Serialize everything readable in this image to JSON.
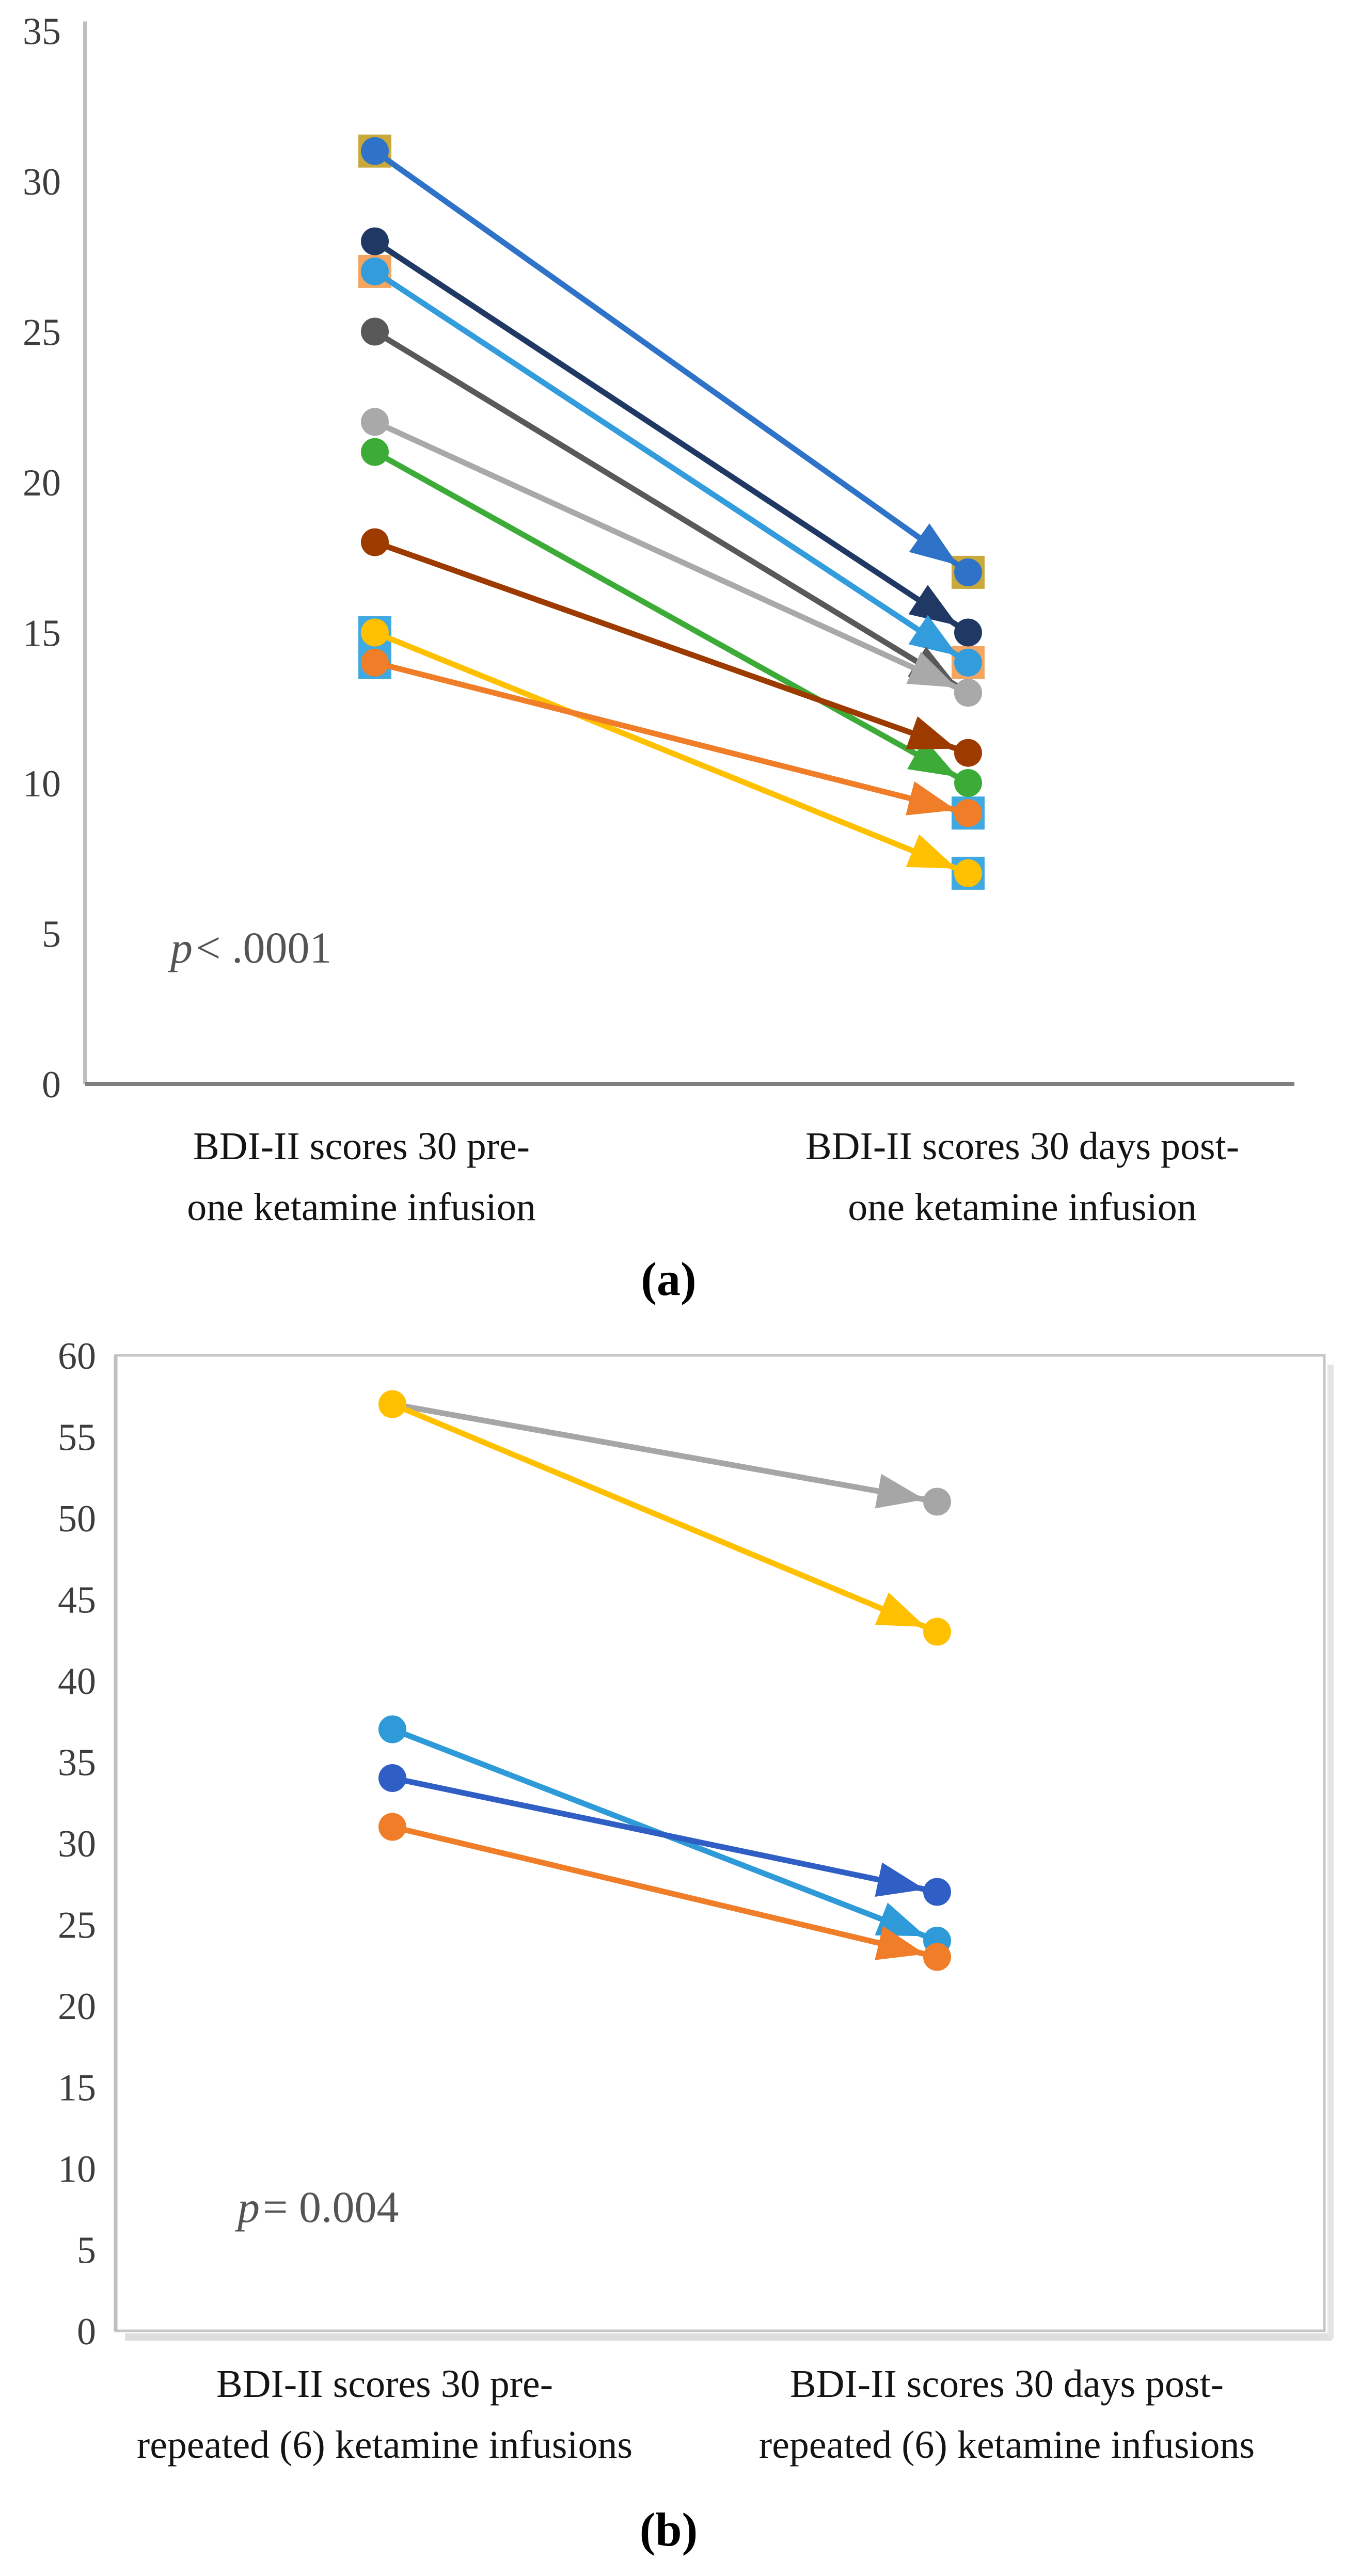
{
  "chart_data": [
    {
      "type": "line",
      "subtype": "slopegraph-pre-post-arrows",
      "panel_label": "(a)",
      "title": "",
      "xlabel": "",
      "ylabel": "",
      "ylim": [
        0,
        35
      ],
      "ytick_step": 5,
      "grid": false,
      "legend": false,
      "categories": [
        "BDI-II scores 30 pre- one ketamine infusion",
        "BDI-II scores 30 days post- one ketamine infusion"
      ],
      "x_tick_labels": [
        {
          "line1": "BDI-II scores 30 pre-",
          "line2": "one ketamine infusion"
        },
        {
          "line1": "BDI-II scores 30 days post-",
          "line2": "one ketamine infusion"
        }
      ],
      "annotation": {
        "symbol": "p",
        "rel_text": "< .0001"
      },
      "series": [
        {
          "name": "patient gold (hidden square, behind blue)",
          "color": "#C9A93B",
          "marker": "square",
          "line": false,
          "values": [
            31,
            17
          ]
        },
        {
          "name": "patient peach (hidden square, behind light blue)",
          "color": "#F2A661",
          "marker": "square",
          "line": false,
          "values": [
            27,
            14
          ]
        },
        {
          "name": "patient sky-blue square A (behind yellow)",
          "color": "#41A9E1",
          "marker": "square",
          "line": false,
          "values": [
            15,
            7
          ]
        },
        {
          "name": "patient sky-blue square B (behind orange)",
          "color": "#41A9E1",
          "marker": "square",
          "line": false,
          "values": [
            14,
            9
          ]
        },
        {
          "name": "patient blue",
          "color": "#2E73C8",
          "marker": "circle",
          "line": true,
          "values": [
            31,
            17
          ]
        },
        {
          "name": "patient dark navy",
          "color": "#1F3864",
          "marker": "circle",
          "line": true,
          "values": [
            28,
            15
          ]
        },
        {
          "name": "patient light blue",
          "color": "#339CDC",
          "marker": "circle",
          "line": true,
          "values": [
            27,
            14
          ]
        },
        {
          "name": "patient dark gray",
          "color": "#595959",
          "marker": "circle",
          "line": true,
          "values": [
            25,
            13
          ]
        },
        {
          "name": "patient silver",
          "color": "#A9A9A9",
          "marker": "circle",
          "line": true,
          "values": [
            22,
            13
          ]
        },
        {
          "name": "patient green",
          "color": "#3CAB37",
          "marker": "circle",
          "line": true,
          "values": [
            21,
            10
          ]
        },
        {
          "name": "patient dark red",
          "color": "#9C3A00",
          "marker": "circle",
          "line": true,
          "values": [
            18,
            11
          ]
        },
        {
          "name": "patient yellow",
          "color": "#FFC000",
          "marker": "circle",
          "line": true,
          "values": [
            15,
            7
          ]
        },
        {
          "name": "patient orange",
          "color": "#F07D28",
          "marker": "circle",
          "line": true,
          "values": [
            14,
            9
          ]
        }
      ]
    },
    {
      "type": "line",
      "subtype": "slopegraph-pre-post-arrows",
      "panel_label": "(b)",
      "title": "",
      "xlabel": "",
      "ylabel": "",
      "ylim": [
        0,
        60
      ],
      "ytick_step": 5,
      "grid": false,
      "legend": false,
      "categories": [
        "BDI-II scores 30 pre- repeated (6) ketamine infusions",
        "BDI-II scores 30 days post- repeated (6) ketamine infusions"
      ],
      "x_tick_labels": [
        {
          "line1": "BDI-II scores 30 pre-",
          "line2": "repeated (6) ketamine infusions"
        },
        {
          "line1": "BDI-II scores 30 days post-",
          "line2": "repeated (6) ketamine infusions"
        }
      ],
      "annotation": {
        "symbol": "p",
        "rel_text": "= 0.004"
      },
      "series": [
        {
          "name": "patient gray",
          "color": "#A6A6A6",
          "marker": "circle",
          "line": true,
          "values": [
            57,
            51
          ]
        },
        {
          "name": "patient yellow",
          "color": "#FFC000",
          "marker": "circle",
          "line": true,
          "values": [
            57,
            43
          ]
        },
        {
          "name": "patient light blue",
          "color": "#2E9BD8",
          "marker": "circle",
          "line": true,
          "values": [
            37,
            24
          ]
        },
        {
          "name": "patient blue",
          "color": "#2F5FC4",
          "marker": "circle",
          "line": true,
          "values": [
            34,
            27
          ]
        },
        {
          "name": "patient orange",
          "color": "#F07D28",
          "marker": "circle",
          "line": true,
          "values": [
            31,
            23
          ]
        }
      ]
    }
  ]
}
